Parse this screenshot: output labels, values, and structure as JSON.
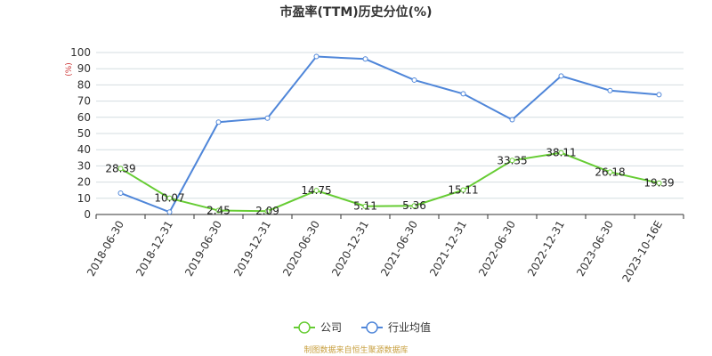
{
  "chart_data": {
    "type": "line",
    "title": "市盈率(TTM)历史分位(%)",
    "unit_label": "(%)",
    "categories": [
      "2018-06-30",
      "2018-12-31",
      "2019-06-30",
      "2019-12-31",
      "2020-06-30",
      "2020-12-31",
      "2021-06-30",
      "2021-12-31",
      "2022-06-30",
      "2022-12-31",
      "2023-06-30",
      "2023-10-16E"
    ],
    "ylim": [
      0,
      100
    ],
    "yticks": [
      0,
      10,
      20,
      30,
      40,
      50,
      60,
      70,
      80,
      90,
      100
    ],
    "grid": true,
    "legend_position": "bottom-center",
    "series": [
      {
        "name": "公司",
        "color": "#66cc33",
        "show_labels": true,
        "values": [
          28.39,
          10.07,
          2.45,
          2.09,
          14.75,
          5.11,
          5.36,
          15.11,
          33.35,
          38.11,
          26.18,
          19.39
        ]
      },
      {
        "name": "行业均值",
        "color": "#4f86d9",
        "show_labels": false,
        "values": [
          13.2,
          1.5,
          57.0,
          59.5,
          97.5,
          96.0,
          83.0,
          74.5,
          58.5,
          85.5,
          76.5,
          74.0
        ]
      }
    ]
  },
  "source": "制图数据来自恒生聚源数据库"
}
